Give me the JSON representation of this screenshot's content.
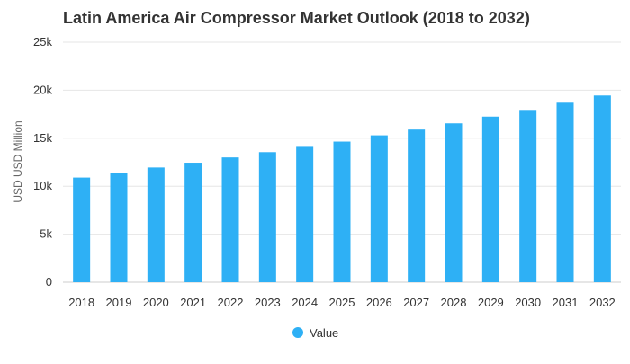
{
  "chart_data": {
    "type": "bar",
    "title": "Latin America Air Compressor Market Outlook (2018 to 2032)",
    "xlabel": "",
    "ylabel": "USD USD Million",
    "categories": [
      "2018",
      "2019",
      "2020",
      "2021",
      "2022",
      "2023",
      "2024",
      "2025",
      "2026",
      "2027",
      "2028",
      "2029",
      "2030",
      "2031",
      "2032"
    ],
    "series": [
      {
        "name": "Value",
        "color": "#2eb0f5",
        "values": [
          10900,
          11400,
          11950,
          12450,
          13000,
          13550,
          14100,
          14650,
          15300,
          15900,
          16550,
          17250,
          17950,
          18700,
          19450
        ]
      }
    ],
    "ylim": [
      0,
      25000
    ],
    "yticks": [
      0,
      5000,
      10000,
      15000,
      20000,
      25000
    ],
    "ytick_labels": [
      "0",
      "5k",
      "10k",
      "15k",
      "20k",
      "25k"
    ],
    "grid": true,
    "legend_position": "bottom-center"
  }
}
